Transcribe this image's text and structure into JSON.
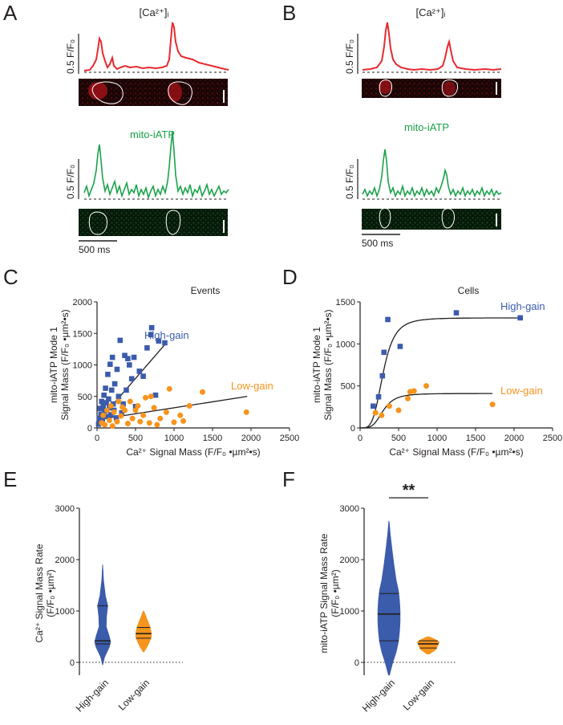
{
  "colors": {
    "ca": "#e8292e",
    "mito": "#1aa24a",
    "high_gain": "#3b5bab",
    "low_gain": "#f7941d",
    "axis": "#231f20"
  },
  "panels": {
    "A": {
      "letter": "A",
      "ca_label": "[Ca²⁺]ᵢ",
      "mito_label": "mito-iATP",
      "scale_y": "0.5 F/F₀",
      "time_scale": "500 ms"
    },
    "B": {
      "letter": "B",
      "ca_label": "[Ca²⁺]ᵢ",
      "mito_label": "mito-iATP",
      "scale_y": "0.5 F/F₀",
      "time_scale": "500 ms"
    }
  },
  "chart_data": [
    {
      "panel": "C",
      "type": "scatter",
      "title": "Events",
      "xlabel": "Ca²⁺ Signal Mass (F/F₀ •µm²•s)",
      "ylabel_line1": "mito-iATP Mode 1",
      "ylabel_line2": "Signal Mass (F/F₀ •µm²•s)",
      "xlim": [
        0,
        2500
      ],
      "ylim": [
        0,
        2000
      ],
      "xticks": [
        0,
        500,
        1000,
        1500,
        2000,
        2500
      ],
      "yticks": [
        0,
        500,
        1000,
        1500,
        2000
      ],
      "series": [
        {
          "name": "High-gain",
          "marker": "square",
          "points": [
            [
              20,
              60
            ],
            [
              30,
              150
            ],
            [
              40,
              310
            ],
            [
              50,
              220
            ],
            [
              60,
              420
            ],
            [
              70,
              140
            ],
            [
              80,
              350
            ],
            [
              90,
              520
            ],
            [
              100,
              270
            ],
            [
              110,
              630
            ],
            [
              120,
              400
            ],
            [
              130,
              180
            ],
            [
              140,
              850
            ],
            [
              150,
              460
            ],
            [
              160,
              320
            ],
            [
              170,
              1010
            ],
            [
              180,
              210
            ],
            [
              190,
              600
            ],
            [
              200,
              1120
            ],
            [
              210,
              380
            ],
            [
              220,
              280
            ],
            [
              230,
              700
            ],
            [
              250,
              160
            ],
            [
              260,
              930
            ],
            [
              280,
              500
            ],
            [
              300,
              1390
            ],
            [
              320,
              240
            ],
            [
              340,
              380
            ],
            [
              360,
              1150
            ],
            [
              380,
              600
            ],
            [
              400,
              1100
            ],
            [
              420,
              1000
            ],
            [
              450,
              780
            ],
            [
              480,
              1120
            ],
            [
              500,
              340
            ],
            [
              550,
              900
            ],
            [
              600,
              820
            ],
            [
              650,
              1270
            ],
            [
              700,
              1480
            ],
            [
              710,
              1590
            ],
            [
              760,
              520
            ],
            [
              800,
              1380
            ],
            [
              880,
              1350
            ]
          ]
        },
        {
          "name": "Low-gain",
          "marker": "circle",
          "points": [
            [
              60,
              80
            ],
            [
              80,
              200
            ],
            [
              100,
              50
            ],
            [
              130,
              280
            ],
            [
              160,
              120
            ],
            [
              180,
              350
            ],
            [
              200,
              30
            ],
            [
              220,
              250
            ],
            [
              260,
              100
            ],
            [
              280,
              420
            ],
            [
              310,
              190
            ],
            [
              330,
              330
            ],
            [
              360,
              280
            ],
            [
              400,
              70
            ],
            [
              430,
              420
            ],
            [
              460,
              150
            ],
            [
              500,
              280
            ],
            [
              530,
              350
            ],
            [
              560,
              100
            ],
            [
              600,
              200
            ],
            [
              630,
              480
            ],
            [
              680,
              80
            ],
            [
              700,
              500
            ],
            [
              740,
              320
            ],
            [
              780,
              50
            ],
            [
              820,
              150
            ],
            [
              900,
              250
            ],
            [
              940,
              620
            ],
            [
              1000,
              90
            ],
            [
              1080,
              200
            ],
            [
              1120,
              110
            ],
            [
              1200,
              350
            ],
            [
              1370,
              570
            ],
            [
              1940,
              250
            ]
          ]
        }
      ],
      "fits": [
        {
          "name": "High-gain",
          "x": [
            0,
            900
          ],
          "y": [
            80,
            1350
          ]
        },
        {
          "name": "Low-gain",
          "x": [
            0,
            1950
          ],
          "y": [
            130,
            500
          ]
        }
      ]
    },
    {
      "panel": "D",
      "type": "scatter",
      "title": "Cells",
      "xlabel": "Ca²⁺ Signal Mass (F/F₀ •µm²•s)",
      "ylabel_line1": "mito-iATP Mode 1",
      "ylabel_line2": "Signal Mass (F/F₀ •µm²•s)",
      "xlim": [
        0,
        2500
      ],
      "ylim": [
        0,
        1500
      ],
      "xticks": [
        0,
        500,
        1000,
        1500,
        2000,
        2500
      ],
      "yticks": [
        0,
        500,
        1000,
        1500
      ],
      "series": [
        {
          "name": "High-gain",
          "marker": "square",
          "points": [
            [
              170,
              260
            ],
            [
              240,
              370
            ],
            [
              290,
              620
            ],
            [
              310,
              900
            ],
            [
              360,
              1290
            ],
            [
              520,
              970
            ],
            [
              1250,
              1370
            ],
            [
              2080,
              1310
            ]
          ]
        },
        {
          "name": "Low-gain",
          "marker": "circle",
          "points": [
            [
              200,
              180
            ],
            [
              280,
              150
            ],
            [
              380,
              260
            ],
            [
              500,
              210
            ],
            [
              620,
              350
            ],
            [
              650,
              430
            ],
            [
              700,
              440
            ],
            [
              860,
              500
            ],
            [
              1720,
              280
            ]
          ]
        }
      ],
      "fits": [
        {
          "name": "High-gain",
          "model": "sigmoid",
          "top": 1310,
          "half": 300,
          "slope": 4,
          "x_range": [
            0,
            2080
          ]
        },
        {
          "name": "Low-gain",
          "model": "sigmoid",
          "top": 410,
          "half": 300,
          "slope": 4,
          "x_range": [
            0,
            1720
          ]
        }
      ]
    },
    {
      "panel": "E",
      "type": "violin",
      "ylabel_line1": "Ca²⁺ Signal Mass Rate",
      "ylabel_line2": "(F/F₀ •µm²)",
      "ylim": [
        -250,
        3000
      ],
      "yticks": [
        0,
        1000,
        2000,
        3000
      ],
      "categories": [
        "High-gain",
        "Low-gain"
      ],
      "series": [
        {
          "name": "High-gain",
          "min": -50,
          "max": 1900,
          "q1": 360,
          "median": 420,
          "q3": 1100,
          "profile": [
            [
              -50,
              0.02
            ],
            [
              100,
              0.25
            ],
            [
              300,
              0.85
            ],
            [
              400,
              1.0
            ],
            [
              500,
              0.85
            ],
            [
              700,
              0.45
            ],
            [
              900,
              0.5
            ],
            [
              1100,
              0.65
            ],
            [
              1300,
              0.35
            ],
            [
              1600,
              0.12
            ],
            [
              1900,
              0.02
            ]
          ]
        },
        {
          "name": "Low-gain",
          "min": 200,
          "max": 1000,
          "q1": 470,
          "median": 560,
          "q3": 680,
          "profile": [
            [
              200,
              0.05
            ],
            [
              300,
              0.45
            ],
            [
              400,
              0.75
            ],
            [
              500,
              1.0
            ],
            [
              600,
              0.95
            ],
            [
              700,
              0.8
            ],
            [
              800,
              0.55
            ],
            [
              900,
              0.3
            ],
            [
              1000,
              0.05
            ]
          ]
        }
      ]
    },
    {
      "panel": "F",
      "type": "violin",
      "ylabel_line1": "mito-iATP Signal Mass Rate",
      "ylabel_line2": "(F/F₀ •µm²)",
      "ylim": [
        -250,
        3000
      ],
      "yticks": [
        0,
        1000,
        2000,
        3000
      ],
      "categories": [
        "High-gain",
        "Low-gain"
      ],
      "significance": "**",
      "series": [
        {
          "name": "High-gain",
          "min": -250,
          "max": 2750,
          "q1": 420,
          "median": 940,
          "q3": 1340,
          "profile": [
            [
              -250,
              0.05
            ],
            [
              0,
              0.35
            ],
            [
              200,
              0.65
            ],
            [
              400,
              0.85
            ],
            [
              600,
              0.95
            ],
            [
              800,
              1.0
            ],
            [
              1000,
              1.0
            ],
            [
              1200,
              0.95
            ],
            [
              1400,
              0.85
            ],
            [
              1600,
              0.65
            ],
            [
              1900,
              0.45
            ],
            [
              2200,
              0.28
            ],
            [
              2500,
              0.12
            ],
            [
              2750,
              0.02
            ]
          ]
        },
        {
          "name": "Low-gain",
          "min": 160,
          "max": 500,
          "q1": 280,
          "median": 360,
          "q3": 420,
          "profile": [
            [
              160,
              0.1
            ],
            [
              250,
              0.7
            ],
            [
              330,
              0.85
            ],
            [
              400,
              1.0
            ],
            [
              450,
              0.6
            ],
            [
              500,
              0.1
            ]
          ]
        }
      ]
    }
  ],
  "letters": {
    "C": "C",
    "D": "D",
    "E": "E",
    "F": "F"
  }
}
